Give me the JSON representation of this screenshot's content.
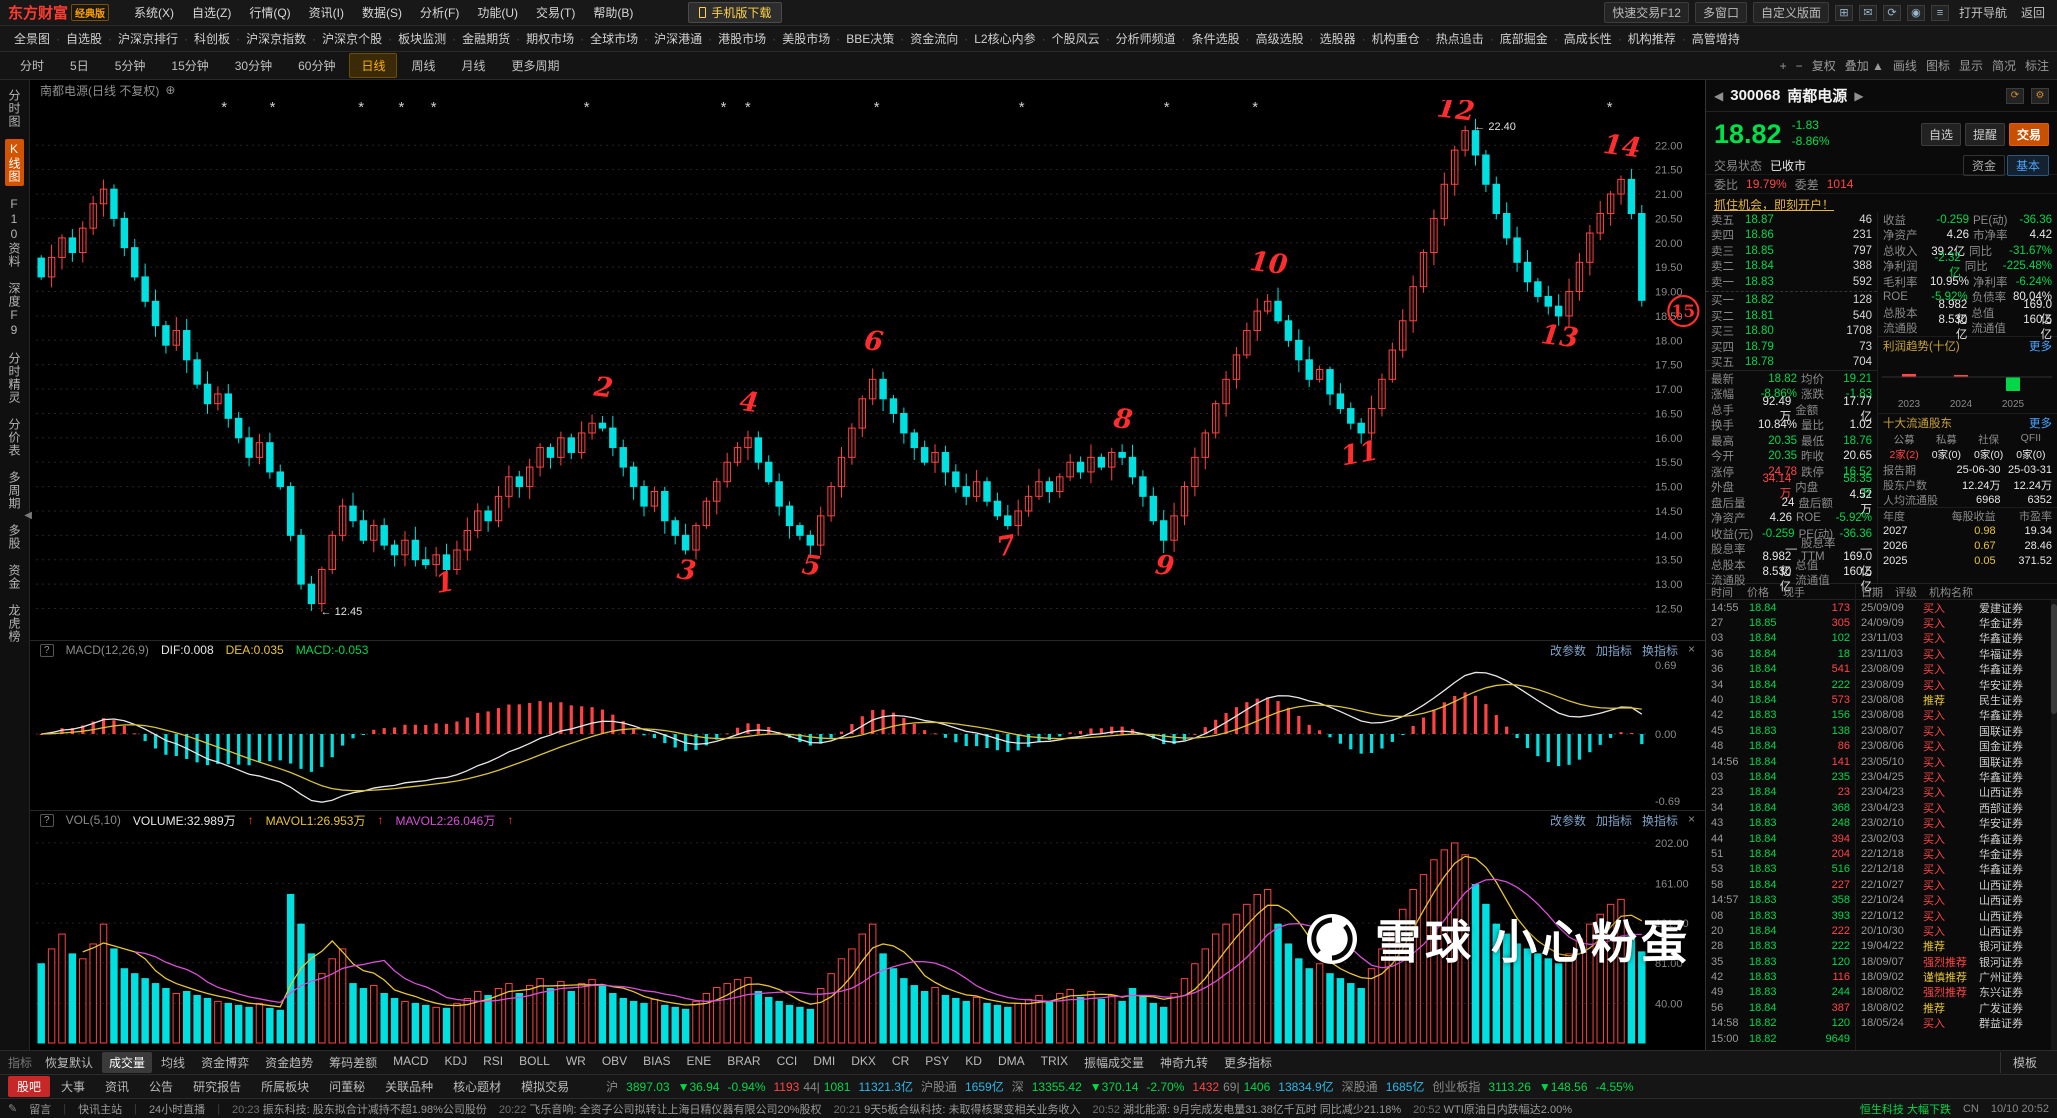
{
  "colors": {
    "up": "#ff4242",
    "down": "#00e0e0",
    "rise": "#ff4545",
    "fall": "#00d84a",
    "yellow": "#e8c533",
    "magenta": "#d84fd8",
    "accent": "#ff8800",
    "dif_line": "#e8e8e8",
    "dea_line": "#d8c23a"
  },
  "menubar": {
    "logo": "东方财富",
    "edition": "经典版",
    "menus": [
      "系统(X)",
      "自选(Z)",
      "行情(Q)",
      "资讯(I)",
      "数据(S)",
      "分析(F)",
      "功能(U)",
      "交易(T)",
      "帮助(B)"
    ],
    "download": "手机版下载",
    "right_buttons": [
      "快速交易F12",
      "多窗口",
      "自定义版面"
    ],
    "right_links": [
      "打开导航",
      "返回"
    ]
  },
  "navbar": {
    "items": [
      "全景图",
      "自选股",
      "沪深京排行",
      "科创板",
      "沪深京指数",
      "沪深京个股",
      "板块监测",
      "金融期货",
      "期权市场",
      "全球市场",
      "沪深港通",
      "港股市场",
      "美股市场",
      "BBE决策",
      "资金流向",
      "L2核心内参",
      "个股风云",
      "分析师频道",
      "条件选股",
      "高级选股",
      "选股器",
      "机构重仓",
      "热点追击",
      "底部掘金",
      "高成长性",
      "机构推荐",
      "高管增持"
    ]
  },
  "timeframe_bar": {
    "items": [
      "分时",
      "5日",
      "5分钟",
      "15分钟",
      "30分钟",
      "60分钟",
      "日线",
      "周线",
      "月线",
      "更多周期"
    ],
    "active": "日线",
    "right_tools": [
      "+",
      "−",
      "复权",
      "叠加 ▲",
      "画线",
      "图标",
      "显示",
      "简况",
      "标注"
    ]
  },
  "left_sidebar": {
    "items": [
      "分时图",
      "K线图",
      "F10资料",
      "深度F9",
      "分时精灵",
      "分价表",
      "多周期",
      "多股",
      "资金",
      "龙虎榜"
    ],
    "active": "K线图",
    "collapse": "◀"
  },
  "chart": {
    "title": "南都电源(日线 不复权)",
    "add_icon": "⊕",
    "high_label": "← 22.40",
    "low_label": "← 12.45",
    "event_markers": [
      0.115,
      0.145,
      0.2,
      0.225,
      0.245,
      0.34,
      0.425,
      0.44,
      0.52,
      0.61,
      0.7,
      0.755,
      0.875,
      0.975
    ],
    "axis_labels": [
      "22.00",
      "21.50",
      "21.00",
      "20.50",
      "20.00",
      "19.50",
      "19.00",
      "18.50",
      "18.00",
      "17.50",
      "17.00",
      "16.50",
      "16.00",
      "15.50",
      "15.00",
      "14.50",
      "14.00",
      "13.50",
      "13.00",
      "12.50"
    ],
    "annotations": [
      {
        "label": "1",
        "i": 39,
        "p": 12.85
      },
      {
        "label": "2",
        "i": 54,
        "p": 16.85
      },
      {
        "label": "3",
        "i": 62,
        "p": 13.1
      },
      {
        "label": "4",
        "i": 68,
        "p": 16.55
      },
      {
        "label": "5",
        "i": 74,
        "p": 13.2
      },
      {
        "label": "6",
        "i": 80,
        "p": 17.8
      },
      {
        "label": "7",
        "i": 93,
        "p": 13.6
      },
      {
        "label": "8",
        "i": 104,
        "p": 16.2
      },
      {
        "label": "9",
        "i": 108,
        "p": 13.2
      },
      {
        "label": "10",
        "i": 118,
        "p": 19.4
      },
      {
        "label": "11",
        "i": 127,
        "p": 15.5
      },
      {
        "label": "12",
        "i": 136,
        "p": 22.55
      },
      {
        "label": "13",
        "i": 146,
        "p": 17.9
      },
      {
        "label": "14",
        "i": 152,
        "p": 21.8
      },
      {
        "label": "15",
        "i": 158,
        "p": 18.6,
        "circled": true
      }
    ]
  },
  "chart_data": {
    "type": "candlestick",
    "symbol": "300068 南都电源",
    "period": "日线 不复权",
    "price_range": [
      12.1,
      22.6
    ],
    "high": 22.4,
    "low": 12.45,
    "closes": [
      19.3,
      19.7,
      20.1,
      19.8,
      20.3,
      20.8,
      21.1,
      20.5,
      19.9,
      19.3,
      18.8,
      18.3,
      17.9,
      18.2,
      17.6,
      17.1,
      16.7,
      16.9,
      16.4,
      16.0,
      15.6,
      15.9,
      15.3,
      15.0,
      14.0,
      13.0,
      12.6,
      13.3,
      14.0,
      14.6,
      14.3,
      13.9,
      14.2,
      13.8,
      13.6,
      13.9,
      13.5,
      13.4,
      13.6,
      13.3,
      13.7,
      14.1,
      14.5,
      14.3,
      14.8,
      15.2,
      15.0,
      15.4,
      15.8,
      15.6,
      16.0,
      15.7,
      16.1,
      16.3,
      16.2,
      15.8,
      15.4,
      15.0,
      14.6,
      14.9,
      14.3,
      14.0,
      13.7,
      14.2,
      14.7,
      15.1,
      15.5,
      15.8,
      16.0,
      15.5,
      15.1,
      14.6,
      14.2,
      14.0,
      13.8,
      14.4,
      15.0,
      15.6,
      16.2,
      16.8,
      17.2,
      16.8,
      16.5,
      16.1,
      15.8,
      15.5,
      15.7,
      15.3,
      15.0,
      14.8,
      15.1,
      14.7,
      14.4,
      14.2,
      14.5,
      14.8,
      15.1,
      14.9,
      15.2,
      15.5,
      15.3,
      15.6,
      15.4,
      15.7,
      15.6,
      15.2,
      14.8,
      14.3,
      13.9,
      14.4,
      15.0,
      15.6,
      16.1,
      16.7,
      17.2,
      17.7,
      18.2,
      18.6,
      18.8,
      18.4,
      18.0,
      17.6,
      17.2,
      17.4,
      16.9,
      16.6,
      16.3,
      16.1,
      16.6,
      17.2,
      17.8,
      18.4,
      19.1,
      19.8,
      20.5,
      21.2,
      21.9,
      22.3,
      21.8,
      21.2,
      20.6,
      20.1,
      19.6,
      19.2,
      18.9,
      18.7,
      18.5,
      19.0,
      19.6,
      20.2,
      20.6,
      21.0,
      21.3,
      20.6,
      18.82
    ],
    "volumes": [
      80,
      95,
      110,
      90,
      85,
      100,
      120,
      95,
      75,
      70,
      65,
      60,
      55,
      50,
      52,
      48,
      45,
      42,
      40,
      38,
      36,
      40,
      35,
      33,
      150,
      120,
      90,
      70,
      85,
      95,
      60,
      55,
      58,
      50,
      45,
      42,
      40,
      38,
      36,
      35,
      40,
      45,
      52,
      48,
      55,
      60,
      50,
      58,
      65,
      55,
      62,
      52,
      60,
      64,
      58,
      50,
      45,
      42,
      40,
      44,
      38,
      36,
      34,
      42,
      50,
      56,
      60,
      64,
      66,
      52,
      46,
      42,
      38,
      36,
      34,
      55,
      70,
      85,
      95,
      110,
      120,
      90,
      75,
      65,
      58,
      52,
      56,
      48,
      45,
      42,
      46,
      40,
      38,
      36,
      40,
      44,
      48,
      42,
      50,
      54,
      46,
      52,
      44,
      48,
      42,
      55,
      48,
      40,
      36,
      50,
      65,
      80,
      95,
      110,
      120,
      130,
      140,
      150,
      155,
      120,
      100,
      85,
      75,
      80,
      70,
      65,
      60,
      55,
      75,
      95,
      115,
      135,
      155,
      170,
      185,
      195,
      202,
      190,
      160,
      140,
      120,
      110,
      100,
      95,
      90,
      85,
      80,
      90,
      105,
      120,
      130,
      140,
      145,
      110,
      92
    ],
    "wick_overrides": {
      "26": {
        "low": 12.45
      },
      "137": {
        "high": 22.4
      }
    }
  },
  "macd_panel": {
    "name": "MACD(12,26,9)",
    "dif": "DIF:0.008",
    "dea": "DEA:0.035",
    "macd": "MACD:-0.053",
    "axis": [
      "0.69",
      "0.00",
      "-0.69"
    ],
    "tools": [
      "改参数",
      "加指标",
      "换指标"
    ],
    "close": "×"
  },
  "vol_panel": {
    "name": "VOL(5,10)",
    "volume": "VOLUME:32.989万",
    "mavol1": "MAVOL1:26.953万",
    "mavol2": "MAVOL2:26.046万",
    "arrow": "↑",
    "axis": [
      "202.00",
      "161.00",
      "121.00",
      "81.00",
      "40.00"
    ],
    "tools": [
      "改参数",
      "加指标",
      "换指标"
    ],
    "close": "×"
  },
  "indicator_tabs": {
    "prefix": "指标",
    "items": [
      "恢复默认",
      "成交量",
      "均线",
      "资金博弈",
      "资金趋势",
      "筹码差额",
      "MACD",
      "KDJ",
      "RSI",
      "BOLL",
      "WR",
      "OBV",
      "BIAS",
      "ENE",
      "BRAR",
      "CCI",
      "DMI",
      "DKX",
      "CR",
      "PSY",
      "KD",
      "DMA",
      "TRIX",
      "振幅成交量",
      "神奇九转",
      "更多指标"
    ],
    "active": "成交量",
    "right": "模板"
  },
  "info_tabs": {
    "items": [
      "股吧",
      "大事",
      "资讯",
      "公告",
      "研究报告",
      "所属板块",
      "问董秘",
      "关联品种",
      "核心题材",
      "模拟交易"
    ],
    "active": "股吧"
  },
  "market_status": [
    {
      "name": "沪",
      "value": "3897.03",
      "change": "▼36.94",
      "pct": "-0.94%",
      "up": "1193",
      "flat": "44",
      "down": "1081",
      "amount": "11321.3亿"
    },
    {
      "name": "沪股通",
      "amount": "1659亿"
    },
    {
      "name": "深",
      "value": "13355.42",
      "change": "▼370.14",
      "pct": "-2.70%",
      "up": "1432",
      "flat": "69",
      "down": "1406",
      "amount": "13834.9亿"
    },
    {
      "name": "深股通",
      "amount": "1685亿"
    },
    {
      "name": "创业板指",
      "value": "3113.26",
      "change": "▼148.56",
      "pct": "-4.55%"
    }
  ],
  "status_bar": {
    "widgets": [
      "留言",
      "快讯主站",
      "24小时直播"
    ],
    "news": [
      {
        "time": "20:23",
        "text": "振东科技: 股东拟合计减持不超1.98%公司股份"
      },
      {
        "time": "20:22",
        "text": "飞乐音响: 全资子公司拟转让上海日精仪器有限公司20%股权"
      },
      {
        "time": "20:21",
        "text": "9天5板合纵科技: 未取得核聚变相关业务收入"
      },
      {
        "time": "20:52",
        "text": "湖北能源: 9月完成发电量31.38亿千瓦时 同比减少21.18%"
      },
      {
        "time": "20:52",
        "text": "WTI原油日内跌幅达2.00%"
      }
    ],
    "hot": "恒生科技 大幅下跌",
    "ime": "CN",
    "clock": "10/10 20:52"
  },
  "right_panel": {
    "prev": "◀",
    "next": "▶",
    "code": "300068",
    "name": "南都电源",
    "last": "18.82",
    "change": "-1.83",
    "pct": "-8.86%",
    "actions": {
      "watch": "自选",
      "alert": "提醒",
      "trade": "交易"
    },
    "trade_status_label": "交易状态",
    "trade_status": "已收市",
    "tabs": [
      "资金",
      "基本"
    ],
    "active_tab": "基本",
    "weibi_label": "委比",
    "weibi": "19.79%",
    "weicha_label": "委差",
    "weicha": "1014",
    "ad": "抓住机会，即刻开户！",
    "order_book": {
      "asks": [
        [
          "卖五",
          "18.87",
          "46"
        ],
        [
          "卖四",
          "18.86",
          "231"
        ],
        [
          "卖三",
          "18.85",
          "797"
        ],
        [
          "卖二",
          "18.84",
          "388"
        ],
        [
          "卖一",
          "18.83",
          "592"
        ]
      ],
      "bids": [
        [
          "买一",
          "18.82",
          "128"
        ],
        [
          "买二",
          "18.81",
          "540"
        ],
        [
          "买三",
          "18.80",
          "1708"
        ],
        [
          "买四",
          "18.79",
          "73"
        ],
        [
          "买五",
          "18.78",
          "704"
        ]
      ]
    },
    "quote_grid": [
      [
        "最新",
        "18.82|g",
        "均价",
        "19.21|g"
      ],
      [
        "涨幅",
        "-8.86%|g",
        "涨跌",
        "-1.83|g"
      ],
      [
        "总手",
        "92.49万|w",
        "金额",
        "17.77亿|w"
      ],
      [
        "换手",
        "10.84%|w",
        "量比",
        "1.02|w"
      ],
      [
        "最高",
        "20.35|g",
        "最低",
        "18.76|g"
      ],
      [
        "今开",
        "20.35|g",
        "昨收",
        "20.65|w"
      ],
      [
        "涨停",
        "24.78|r",
        "跌停",
        "16.52|g"
      ],
      [
        "外盘",
        "34.14万|r",
        "内盘",
        "58.35万|g"
      ],
      [
        "盘后量",
        "24|w",
        "盘后额",
        "4.52万|w"
      ],
      [
        "净资产",
        "4.26|w",
        "ROE",
        "-5.92%|g"
      ],
      [
        "收益(元)",
        "-0.259|g",
        "PE(动)",
        "-36.36|g"
      ],
      [
        "股息率",
        "—|w",
        "股息率TTM",
        "—|w"
      ],
      [
        "总股本",
        "8.982亿|w",
        "总值",
        "169.0亿|w"
      ],
      [
        "流通股",
        "8.530亿|w",
        "流通值",
        "160.5亿|w"
      ]
    ],
    "fin_stats": [
      [
        "收益",
        "-0.259|g",
        "PE(动)",
        "-36.36|g"
      ],
      [
        "净资产",
        "4.26|w",
        "市净率",
        "4.42|w"
      ],
      [
        "总收入",
        "39.2亿|w",
        "同比",
        "-31.67%|g"
      ],
      [
        "净利润",
        "-2.32亿|g",
        "同比",
        "-225.48%|g"
      ],
      [
        "毛利率",
        "10.95%|w",
        "净利率",
        "-6.24%|g"
      ],
      [
        "ROE",
        "-5.92%|g",
        "负债率",
        "80.04%|w"
      ],
      [
        "总股本",
        "8.982亿|w",
        "总值",
        "169.0亿|w"
      ],
      [
        "流通股",
        "8.530亿|w",
        "流通值",
        "160.5亿|w"
      ]
    ],
    "trend": {
      "title": "利润趋势(十亿)",
      "more": "更多",
      "years": [
        "2023",
        "2024",
        "2025"
      ],
      "values": [
        0.5,
        0.1,
        -2.3
      ]
    },
    "holders": {
      "title": "十大流通股东",
      "more": "更多",
      "cols": [
        "公募",
        "私募",
        "社保",
        "QFII"
      ],
      "vals": [
        "2家(2)",
        "0家(0)",
        "0家(0)",
        "0家(0)"
      ],
      "rows": [
        [
          "报告期",
          "25-06-30",
          "25-03-31"
        ],
        [
          "股东户数",
          "12.24万",
          "12.24万"
        ],
        [
          "人均流通股",
          "6968",
          "6352"
        ]
      ]
    },
    "forecast": {
      "header": [
        "年度",
        "每股收益",
        "市盈率"
      ],
      "rows": [
        [
          "2027",
          "0.98",
          "19.34"
        ],
        [
          "2026",
          "0.67",
          "28.46"
        ],
        [
          "2025",
          "0.05",
          "371.52"
        ]
      ]
    },
    "list_headers": {
      "ticks": [
        "时间",
        "价格",
        "现手"
      ],
      "ratings": [
        "日期",
        "评级",
        "机构名称"
      ]
    },
    "ticks": [
      [
        "14:55",
        "18.84",
        "173",
        "b"
      ],
      [
        "27",
        "18.85",
        "305",
        "b"
      ],
      [
        "03",
        "18.84",
        "102",
        "s"
      ],
      [
        "36",
        "18.84",
        "18",
        "s"
      ],
      [
        "36",
        "18.84",
        "541",
        "b"
      ],
      [
        "34",
        "18.84",
        "222",
        "s"
      ],
      [
        "40",
        "18.84",
        "573",
        "b"
      ],
      [
        "42",
        "18.83",
        "156",
        "s"
      ],
      [
        "45",
        "18.83",
        "138",
        "s"
      ],
      [
        "48",
        "18.84",
        "86",
        "b"
      ],
      [
        "14:56",
        "18.84",
        "141",
        "b"
      ],
      [
        "03",
        "18.84",
        "235",
        "s"
      ],
      [
        "23",
        "18.84",
        "23",
        "b"
      ],
      [
        "34",
        "18.84",
        "368",
        "s"
      ],
      [
        "43",
        "18.83",
        "248",
        "s"
      ],
      [
        "44",
        "18.84",
        "394",
        "b"
      ],
      [
        "51",
        "18.84",
        "204",
        "b"
      ],
      [
        "53",
        "18.83",
        "516",
        "s"
      ],
      [
        "58",
        "18.84",
        "227",
        "b"
      ],
      [
        "14:57",
        "18.83",
        "358",
        "s"
      ],
      [
        "08",
        "18.83",
        "393",
        "s"
      ],
      [
        "20",
        "18.84",
        "222",
        "b"
      ],
      [
        "28",
        "18.83",
        "222",
        "s"
      ],
      [
        "35",
        "18.83",
        "120",
        "s"
      ],
      [
        "42",
        "18.83",
        "116",
        "b"
      ],
      [
        "49",
        "18.83",
        "244",
        "s"
      ],
      [
        "56",
        "18.84",
        "387",
        "b"
      ],
      [
        "14:58",
        "18.82",
        "120",
        "s"
      ],
      [
        "15:00",
        "18.82",
        "9649",
        "s"
      ]
    ],
    "ratings": [
      [
        "25/09/09",
        "买入",
        "爱建证券"
      ],
      [
        "24/09/09",
        "买入",
        "华金证券"
      ],
      [
        "23/11/03",
        "买入",
        "华鑫证券"
      ],
      [
        "23/11/03",
        "买入",
        "华福证券"
      ],
      [
        "23/08/09",
        "买入",
        "华鑫证券"
      ],
      [
        "23/08/09",
        "买入",
        "华安证券"
      ],
      [
        "23/08/08",
        "推荐",
        "民生证券"
      ],
      [
        "23/08/08",
        "买入",
        "华鑫证券"
      ],
      [
        "23/08/07",
        "买入",
        "国联证券"
      ],
      [
        "23/08/06",
        "买入",
        "国金证券"
      ],
      [
        "23/05/10",
        "买入",
        "国联证券"
      ],
      [
        "23/04/25",
        "买入",
        "华鑫证券"
      ],
      [
        "23/04/23",
        "买入",
        "山西证券"
      ],
      [
        "23/04/23",
        "买入",
        "西部证券"
      ],
      [
        "23/02/10",
        "买入",
        "华安证券"
      ],
      [
        "23/02/03",
        "买入",
        "华鑫证券"
      ],
      [
        "22/12/18",
        "买入",
        "华金证券"
      ],
      [
        "22/12/18",
        "买入",
        "华鑫证券"
      ],
      [
        "22/10/27",
        "买入",
        "山西证券"
      ],
      [
        "22/10/24",
        "买入",
        "山西证券"
      ],
      [
        "22/10/12",
        "买入",
        "山西证券"
      ],
      [
        "20/10/30",
        "买入",
        "山西证券"
      ],
      [
        "19/04/22",
        "推荐",
        "银河证券"
      ],
      [
        "18/09/07",
        "强烈推荐",
        "银河证券"
      ],
      [
        "18/09/02",
        "谨慎推荐",
        "广州证券"
      ],
      [
        "18/08/02",
        "强烈推荐",
        "东兴证券"
      ],
      [
        "18/08/02",
        "推荐",
        "广发证券"
      ],
      [
        "18/05/24",
        "买入",
        "群益证券"
      ]
    ]
  },
  "watermark": {
    "brand": "雪球",
    "user": "小心粉蛋"
  }
}
